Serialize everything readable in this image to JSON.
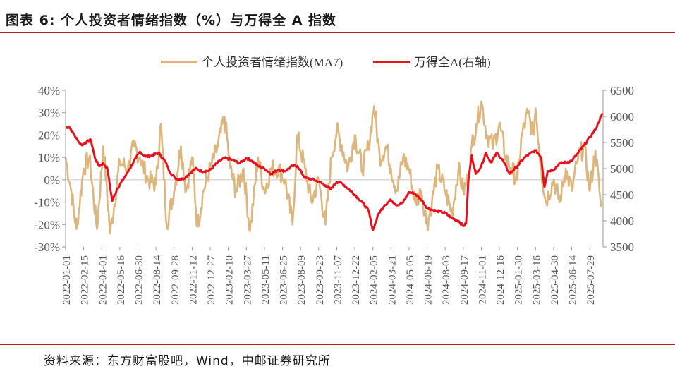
{
  "header": {
    "title": "图表 6: 个人投资者情绪指数（%）与万得全 A 指数"
  },
  "footer": {
    "source": "资料来源：东方财富股吧，Wind，中邮证券研究所"
  },
  "colors": {
    "sentiment": "#ddb67e",
    "index": "#e8101c",
    "accent_rule": "#b22222",
    "axis_text": "#555555"
  },
  "chart_data": {
    "type": "line",
    "title": "",
    "legend": [
      "个人投资者情绪指数(MA7)",
      "万得全A(右轴)"
    ],
    "legend_position": "top-center",
    "x_ticks": [
      "2022-01-01",
      "2022-02-15",
      "2022-04-01",
      "2022-05-16",
      "2022-06-30",
      "2022-08-14",
      "2022-09-28",
      "2022-11-12",
      "2022-12-27",
      "2023-02-10",
      "2023-03-27",
      "2023-05-11",
      "2023-06-25",
      "2023-08-09",
      "2023-09-23",
      "2023-11-07",
      "2023-12-22",
      "2024-02-05",
      "2024-03-21",
      "2024-05-05",
      "2024-06-19",
      "2024-08-03",
      "2024-09-17",
      "2024-11-01",
      "2024-12-16",
      "2025-01-30",
      "2025-03-16",
      "2025-04-30",
      "2025-06-14",
      "2025-07-29"
    ],
    "x_range": [
      "2022-01-01",
      "2025-08-31"
    ],
    "y_left": {
      "ticks": [
        "40%",
        "30%",
        "20%",
        "10%",
        "0%",
        "-10%",
        "-20%",
        "-30%"
      ],
      "range": [
        -30,
        40
      ]
    },
    "y_right": {
      "ticks": [
        "6500",
        "6000",
        "5500",
        "5000",
        "4500",
        "4000",
        "3500"
      ],
      "range": [
        3500,
        6500
      ]
    },
    "series": [
      {
        "name": "个人投资者情绪指数(MA7)",
        "axis": "left",
        "color": "#ddb67e",
        "keypoints": [
          [
            "2022-01-01",
            10
          ],
          [
            "2022-01-15",
            -5
          ],
          [
            "2022-01-28",
            -22
          ],
          [
            "2022-02-15",
            5
          ],
          [
            "2022-03-01",
            10
          ],
          [
            "2022-03-20",
            -22
          ],
          [
            "2022-04-05",
            15
          ],
          [
            "2022-04-22",
            -24
          ],
          [
            "2022-05-16",
            8
          ],
          [
            "2022-06-05",
            5
          ],
          [
            "2022-06-20",
            15
          ],
          [
            "2022-07-05",
            10
          ],
          [
            "2022-07-25",
            0
          ],
          [
            "2022-08-14",
            -2
          ],
          [
            "2022-08-26",
            25
          ],
          [
            "2022-09-10",
            -20
          ],
          [
            "2022-09-28",
            -5
          ],
          [
            "2022-10-15",
            15
          ],
          [
            "2022-10-28",
            -5
          ],
          [
            "2022-11-12",
            10
          ],
          [
            "2022-11-25",
            -21
          ],
          [
            "2022-12-10",
            -5
          ],
          [
            "2022-12-27",
            5
          ],
          [
            "2023-01-15",
            15
          ],
          [
            "2023-02-01",
            28
          ],
          [
            "2023-02-15",
            5
          ],
          [
            "2023-03-01",
            -5
          ],
          [
            "2023-03-20",
            5
          ],
          [
            "2023-04-05",
            -23
          ],
          [
            "2023-04-25",
            10
          ],
          [
            "2023-05-11",
            -5
          ],
          [
            "2023-05-28",
            5
          ],
          [
            "2023-06-15",
            5
          ],
          [
            "2023-07-01",
            0
          ],
          [
            "2023-07-20",
            -20
          ],
          [
            "2023-08-01",
            20
          ],
          [
            "2023-08-20",
            5
          ],
          [
            "2023-09-05",
            -10
          ],
          [
            "2023-09-23",
            0
          ],
          [
            "2023-10-10",
            -20
          ],
          [
            "2023-10-25",
            10
          ],
          [
            "2023-11-07",
            22
          ],
          [
            "2023-11-20",
            15
          ],
          [
            "2023-12-05",
            5
          ],
          [
            "2023-12-22",
            20
          ],
          [
            "2024-01-10",
            5
          ],
          [
            "2024-01-25",
            15
          ],
          [
            "2024-02-08",
            33
          ],
          [
            "2024-02-22",
            10
          ],
          [
            "2024-03-10",
            15
          ],
          [
            "2024-03-21",
            5
          ],
          [
            "2024-04-05",
            -5
          ],
          [
            "2024-04-20",
            10
          ],
          [
            "2024-05-05",
            5
          ],
          [
            "2024-05-20",
            -10
          ],
          [
            "2024-06-05",
            -5
          ],
          [
            "2024-06-19",
            -20
          ],
          [
            "2024-07-01",
            -10
          ],
          [
            "2024-07-15",
            5
          ],
          [
            "2024-08-03",
            -5
          ],
          [
            "2024-08-20",
            -15
          ],
          [
            "2024-09-05",
            5
          ],
          [
            "2024-09-17",
            -5
          ],
          [
            "2024-09-28",
            0
          ],
          [
            "2024-10-08",
            15
          ],
          [
            "2024-10-20",
            25
          ],
          [
            "2024-11-01",
            35
          ],
          [
            "2024-11-15",
            20
          ],
          [
            "2024-12-01",
            15
          ],
          [
            "2024-12-16",
            25
          ],
          [
            "2025-01-01",
            10
          ],
          [
            "2025-01-15",
            5
          ],
          [
            "2025-01-30",
            0
          ],
          [
            "2025-02-10",
            20
          ],
          [
            "2025-02-25",
            30
          ],
          [
            "2025-03-10",
            20
          ],
          [
            "2025-03-16",
            32
          ],
          [
            "2025-03-30",
            5
          ],
          [
            "2025-04-10",
            -10
          ],
          [
            "2025-04-30",
            0
          ],
          [
            "2025-05-15",
            -10
          ],
          [
            "2025-05-30",
            5
          ],
          [
            "2025-06-14",
            -5
          ],
          [
            "2025-06-30",
            10
          ],
          [
            "2025-07-15",
            15
          ],
          [
            "2025-07-29",
            -5
          ],
          [
            "2025-08-12",
            13
          ],
          [
            "2025-08-26",
            -12
          ]
        ]
      },
      {
        "name": "万得全A(右轴)",
        "axis": "right",
        "color": "#e8101c",
        "keypoints": [
          [
            "2022-01-01",
            5780
          ],
          [
            "2022-01-10",
            5800
          ],
          [
            "2022-01-20",
            5680
          ],
          [
            "2022-01-30",
            5550
          ],
          [
            "2022-02-10",
            5450
          ],
          [
            "2022-02-20",
            5500
          ],
          [
            "2022-03-05",
            5550
          ],
          [
            "2022-03-15",
            5200
          ],
          [
            "2022-03-25",
            5050
          ],
          [
            "2022-04-05",
            5100
          ],
          [
            "2022-04-15",
            5000
          ],
          [
            "2022-04-27",
            4380
          ],
          [
            "2022-05-10",
            4620
          ],
          [
            "2022-05-25",
            4800
          ],
          [
            "2022-06-10",
            5000
          ],
          [
            "2022-06-25",
            5200
          ],
          [
            "2022-07-05",
            5320
          ],
          [
            "2022-07-20",
            5230
          ],
          [
            "2022-08-05",
            5250
          ],
          [
            "2022-08-20",
            5300
          ],
          [
            "2022-09-05",
            5150
          ],
          [
            "2022-09-20",
            4900
          ],
          [
            "2022-10-05",
            4800
          ],
          [
            "2022-10-20",
            4800
          ],
          [
            "2022-11-05",
            4900
          ],
          [
            "2022-11-20",
            5000
          ],
          [
            "2022-12-05",
            4950
          ],
          [
            "2022-12-25",
            4960
          ],
          [
            "2023-01-15",
            5120
          ],
          [
            "2023-02-01",
            5200
          ],
          [
            "2023-02-20",
            5170
          ],
          [
            "2023-03-10",
            5100
          ],
          [
            "2023-03-27",
            5200
          ],
          [
            "2023-04-10",
            5150
          ],
          [
            "2023-04-25",
            5050
          ],
          [
            "2023-05-11",
            5000
          ],
          [
            "2023-05-28",
            4900
          ],
          [
            "2023-06-15",
            4980
          ],
          [
            "2023-07-01",
            4950
          ],
          [
            "2023-07-20",
            5050
          ],
          [
            "2023-08-01",
            5050
          ],
          [
            "2023-08-20",
            4820
          ],
          [
            "2023-09-05",
            4800
          ],
          [
            "2023-09-23",
            4750
          ],
          [
            "2023-10-10",
            4680
          ],
          [
            "2023-10-23",
            4600
          ],
          [
            "2023-11-07",
            4750
          ],
          [
            "2023-11-20",
            4720
          ],
          [
            "2023-12-05",
            4620
          ],
          [
            "2023-12-22",
            4500
          ],
          [
            "2024-01-10",
            4350
          ],
          [
            "2024-01-25",
            4200
          ],
          [
            "2024-02-05",
            3820
          ],
          [
            "2024-02-20",
            4150
          ],
          [
            "2024-03-05",
            4300
          ],
          [
            "2024-03-21",
            4400
          ],
          [
            "2024-04-05",
            4300
          ],
          [
            "2024-04-20",
            4350
          ],
          [
            "2024-05-05",
            4550
          ],
          [
            "2024-05-20",
            4520
          ],
          [
            "2024-06-05",
            4400
          ],
          [
            "2024-06-19",
            4250
          ],
          [
            "2024-07-05",
            4200
          ],
          [
            "2024-07-20",
            4180
          ],
          [
            "2024-08-03",
            4150
          ],
          [
            "2024-08-20",
            4050
          ],
          [
            "2024-09-05",
            4000
          ],
          [
            "2024-09-17",
            3900
          ],
          [
            "2024-09-24",
            3950
          ],
          [
            "2024-09-30",
            4800
          ],
          [
            "2024-10-08",
            5250
          ],
          [
            "2024-10-18",
            4900
          ],
          [
            "2024-11-01",
            5050
          ],
          [
            "2024-11-12",
            5300
          ],
          [
            "2024-11-25",
            5120
          ],
          [
            "2024-12-10",
            5300
          ],
          [
            "2024-12-25",
            5150
          ],
          [
            "2025-01-10",
            4900
          ],
          [
            "2025-01-30",
            5050
          ],
          [
            "2025-02-15",
            5200
          ],
          [
            "2025-03-01",
            5280
          ],
          [
            "2025-03-16",
            5350
          ],
          [
            "2025-03-30",
            5220
          ],
          [
            "2025-04-07",
            4650
          ],
          [
            "2025-04-15",
            4950
          ],
          [
            "2025-04-30",
            4980
          ],
          [
            "2025-05-15",
            5100
          ],
          [
            "2025-06-01",
            5120
          ],
          [
            "2025-06-14",
            5150
          ],
          [
            "2025-06-30",
            5300
          ],
          [
            "2025-07-15",
            5450
          ],
          [
            "2025-07-29",
            5600
          ],
          [
            "2025-08-12",
            5750
          ],
          [
            "2025-08-26",
            6000
          ],
          [
            "2025-08-31",
            6050
          ]
        ]
      }
    ]
  }
}
